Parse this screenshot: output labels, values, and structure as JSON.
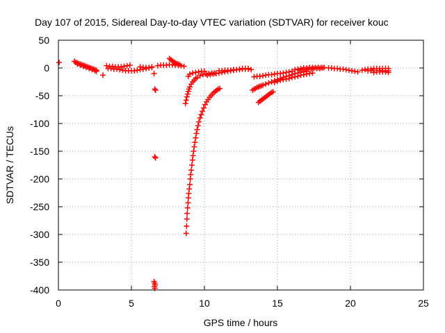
{
  "chart_data": {
    "type": "scatter",
    "title": "Day 107 of 2015, Sidereal Day-to-day VTEC variation (SDTVAR) for receiver kouc",
    "xlabel": "GPS time / hours",
    "ylabel": "SDTVAR / TECUs",
    "xlim": [
      0,
      25
    ],
    "ylim": [
      -400,
      50
    ],
    "xticks": [
      {
        "value": 0,
        "label": "0"
      },
      {
        "value": 5,
        "label": "5"
      },
      {
        "value": 10,
        "label": "10"
      },
      {
        "value": 15,
        "label": "15"
      },
      {
        "value": 20,
        "label": "20"
      },
      {
        "value": 25,
        "label": "25"
      }
    ],
    "yticks": [
      {
        "value": 50,
        "label": "50"
      },
      {
        "value": 0,
        "label": "0"
      },
      {
        "value": -50,
        "label": "-50"
      },
      {
        "value": -100,
        "label": "-100"
      },
      {
        "value": -150,
        "label": "-150"
      },
      {
        "value": -200,
        "label": "-200"
      },
      {
        "value": -250,
        "label": "-250"
      },
      {
        "value": -300,
        "label": "-300"
      },
      {
        "value": -350,
        "label": "-350"
      },
      {
        "value": -400,
        "label": "-400"
      }
    ],
    "grid": true,
    "marker_color": "#ff0000",
    "marker": "plus",
    "series": [
      {
        "points": [
          [
            0.05,
            10
          ],
          [
            1.1,
            12
          ],
          [
            1.2,
            10
          ],
          [
            1.3,
            9
          ],
          [
            1.4,
            8
          ],
          [
            1.5,
            7
          ],
          [
            1.6,
            6
          ],
          [
            1.7,
            5
          ],
          [
            1.8,
            4
          ],
          [
            1.9,
            3
          ],
          [
            2.0,
            2
          ],
          [
            2.1,
            1
          ],
          [
            2.2,
            0
          ],
          [
            2.3,
            -1
          ],
          [
            2.4,
            -2
          ],
          [
            2.5,
            -3
          ],
          [
            2.6,
            -4
          ],
          [
            1.3,
            7
          ],
          [
            1.5,
            5
          ],
          [
            1.7,
            3
          ],
          [
            1.9,
            1
          ],
          [
            2.1,
            -1
          ],
          [
            2.3,
            -3
          ],
          [
            2.5,
            -5
          ],
          [
            2.6,
            -6
          ],
          [
            3.05,
            -13
          ],
          [
            3.3,
            4
          ],
          [
            3.5,
            3
          ],
          [
            3.7,
            3
          ],
          [
            3.9,
            2
          ],
          [
            4.1,
            2
          ],
          [
            4.3,
            2
          ],
          [
            4.5,
            3
          ],
          [
            4.7,
            4
          ],
          [
            4.9,
            5
          ],
          [
            3.4,
            -1
          ],
          [
            3.6,
            -1
          ],
          [
            3.8,
            -2
          ],
          [
            4.0,
            -2
          ],
          [
            4.2,
            -3
          ],
          [
            4.4,
            -4
          ],
          [
            4.6,
            -5
          ],
          [
            4.8,
            -5
          ],
          [
            5.0,
            -5
          ],
          [
            5.2,
            -5
          ],
          [
            5.4,
            -4
          ],
          [
            5.6,
            -3
          ],
          [
            5.8,
            -2
          ],
          [
            6.0,
            -1
          ],
          [
            6.2,
            0
          ],
          [
            6.4,
            1
          ],
          [
            5.6,
            2
          ],
          [
            5.8,
            1
          ],
          [
            6.0,
            1
          ],
          [
            6.2,
            1
          ],
          [
            6.4,
            2
          ],
          [
            6.55,
            -10
          ],
          [
            6.6,
            -38
          ],
          [
            6.65,
            -40
          ],
          [
            6.6,
            -160
          ],
          [
            6.65,
            -162
          ],
          [
            6.55,
            -385
          ],
          [
            6.6,
            -388
          ],
          [
            6.62,
            -391
          ],
          [
            6.58,
            -394
          ],
          [
            6.6,
            -397
          ],
          [
            6.8,
            4
          ],
          [
            7.0,
            5
          ],
          [
            7.2,
            5
          ],
          [
            7.4,
            5
          ],
          [
            7.6,
            6
          ],
          [
            7.8,
            6
          ],
          [
            8.0,
            5
          ],
          [
            8.2,
            5
          ],
          [
            8.4,
            4
          ],
          [
            8.6,
            3
          ],
          [
            7.6,
            17
          ],
          [
            7.7,
            15
          ],
          [
            7.8,
            13
          ],
          [
            7.9,
            11
          ],
          [
            8.0,
            9
          ],
          [
            8.1,
            8
          ],
          [
            8.2,
            7
          ],
          [
            8.3,
            6
          ],
          [
            8.7,
            -64
          ],
          [
            8.75,
            -58
          ],
          [
            8.8,
            -52
          ],
          [
            8.85,
            -47
          ],
          [
            8.9,
            -42
          ],
          [
            8.95,
            -38
          ],
          [
            9.0,
            -34
          ],
          [
            9.1,
            -29
          ],
          [
            9.2,
            -25
          ],
          [
            9.3,
            -22
          ],
          [
            9.4,
            -19
          ],
          [
            9.5,
            -17
          ],
          [
            9.7,
            -14
          ],
          [
            9.9,
            -12
          ],
          [
            10.1,
            -11
          ],
          [
            10.3,
            -10
          ],
          [
            10.5,
            -9
          ],
          [
            10.7,
            -9
          ],
          [
            8.9,
            -15
          ],
          [
            9.0,
            -11
          ],
          [
            9.2,
            -9
          ],
          [
            9.4,
            -8
          ],
          [
            9.6,
            -7
          ],
          [
            9.8,
            -6
          ],
          [
            10.0,
            -6
          ],
          [
            8.75,
            -298
          ],
          [
            8.78,
            -285
          ],
          [
            8.8,
            -272
          ],
          [
            8.82,
            -262
          ],
          [
            8.85,
            -252
          ],
          [
            8.88,
            -243
          ],
          [
            8.9,
            -234
          ],
          [
            8.93,
            -226
          ],
          [
            8.96,
            -218
          ],
          [
            9.0,
            -210
          ],
          [
            9.03,
            -200
          ],
          [
            9.06,
            -192
          ],
          [
            9.1,
            -184
          ],
          [
            9.14,
            -175
          ],
          [
            9.18,
            -166
          ],
          [
            9.22,
            -158
          ],
          [
            9.26,
            -150
          ],
          [
            9.3,
            -142
          ],
          [
            9.35,
            -134
          ],
          [
            9.4,
            -126
          ],
          [
            9.45,
            -118
          ],
          [
            9.5,
            -111
          ],
          [
            9.56,
            -104
          ],
          [
            9.62,
            -97
          ],
          [
            9.7,
            -90
          ],
          [
            9.78,
            -84
          ],
          [
            9.86,
            -78
          ],
          [
            9.95,
            -72
          ],
          [
            10.05,
            -66
          ],
          [
            10.15,
            -61
          ],
          [
            10.25,
            -57
          ],
          [
            10.35,
            -53
          ],
          [
            10.45,
            -50
          ],
          [
            10.55,
            -47
          ],
          [
            10.65,
            -44
          ],
          [
            10.75,
            -42
          ],
          [
            10.85,
            -40
          ],
          [
            10.95,
            -38
          ],
          [
            11.05,
            -37
          ],
          [
            10.2,
            -13
          ],
          [
            10.4,
            -12
          ],
          [
            10.6,
            -11
          ],
          [
            10.8,
            -10
          ],
          [
            11.0,
            -9
          ],
          [
            11.2,
            -8
          ],
          [
            11.4,
            -7
          ],
          [
            11.6,
            -6
          ],
          [
            11.8,
            -5
          ],
          [
            12.0,
            -4
          ],
          [
            12.2,
            -3
          ],
          [
            12.4,
            -3
          ],
          [
            12.6,
            -2
          ],
          [
            12.8,
            -2
          ],
          [
            13.0,
            -2
          ],
          [
            13.2,
            -3
          ],
          [
            11.0,
            -5
          ],
          [
            11.2,
            -5
          ],
          [
            11.4,
            -4
          ],
          [
            11.6,
            -4
          ],
          [
            11.8,
            -4
          ],
          [
            12.0,
            -3
          ],
          [
            12.2,
            -3
          ],
          [
            12.4,
            -2
          ],
          [
            12.6,
            -1
          ],
          [
            12.8,
            -1
          ],
          [
            13.0,
            -1
          ],
          [
            13.4,
            -16
          ],
          [
            13.6,
            -15
          ],
          [
            13.8,
            -15
          ],
          [
            14.0,
            -14
          ],
          [
            14.2,
            -13
          ],
          [
            14.4,
            -12
          ],
          [
            14.6,
            -12
          ],
          [
            14.8,
            -11
          ],
          [
            15.0,
            -10
          ],
          [
            15.2,
            -10
          ],
          [
            15.4,
            -9
          ],
          [
            15.6,
            -8
          ],
          [
            15.8,
            -7
          ],
          [
            16.0,
            -6
          ],
          [
            13.3,
            -40
          ],
          [
            13.4,
            -38
          ],
          [
            13.5,
            -37
          ],
          [
            13.6,
            -35
          ],
          [
            13.7,
            -34
          ],
          [
            13.8,
            -33
          ],
          [
            13.9,
            -32
          ],
          [
            14.0,
            -31
          ],
          [
            14.2,
            -29
          ],
          [
            14.4,
            -27
          ],
          [
            14.6,
            -25
          ],
          [
            14.8,
            -23
          ],
          [
            15.0,
            -21
          ],
          [
            15.2,
            -19
          ],
          [
            15.4,
            -17
          ],
          [
            15.6,
            -15
          ],
          [
            15.8,
            -14
          ],
          [
            16.0,
            -12
          ],
          [
            16.2,
            -10
          ],
          [
            16.4,
            -9
          ],
          [
            16.6,
            -8
          ],
          [
            16.8,
            -7
          ],
          [
            17.0,
            -6
          ],
          [
            13.7,
            -62
          ],
          [
            13.8,
            -60
          ],
          [
            13.9,
            -58
          ],
          [
            14.0,
            -56
          ],
          [
            14.1,
            -54
          ],
          [
            14.2,
            -52
          ],
          [
            14.3,
            -50
          ],
          [
            14.4,
            -48
          ],
          [
            14.5,
            -46
          ],
          [
            14.6,
            -44
          ],
          [
            14.7,
            -43
          ],
          [
            14.8,
            -26
          ],
          [
            15.0,
            -24
          ],
          [
            15.2,
            -22
          ],
          [
            15.4,
            -21
          ],
          [
            15.6,
            -20
          ],
          [
            15.8,
            -19
          ],
          [
            16.0,
            -17
          ],
          [
            16.2,
            -16
          ],
          [
            16.4,
            -15
          ],
          [
            16.6,
            -13
          ],
          [
            16.8,
            -12
          ],
          [
            17.0,
            -11
          ],
          [
            17.2,
            -10
          ],
          [
            17.4,
            -9
          ],
          [
            16.2,
            -3
          ],
          [
            16.4,
            -2
          ],
          [
            16.6,
            -1
          ],
          [
            16.8,
            0
          ],
          [
            17.0,
            0
          ],
          [
            17.2,
            1
          ],
          [
            17.4,
            1
          ],
          [
            17.6,
            1
          ],
          [
            17.8,
            1
          ],
          [
            18.0,
            1
          ],
          [
            18.2,
            1
          ],
          [
            16.5,
            -4
          ],
          [
            16.7,
            -3
          ],
          [
            16.9,
            -3
          ],
          [
            17.1,
            -2
          ],
          [
            17.3,
            -2
          ],
          [
            17.5,
            -1
          ],
          [
            17.7,
            -1
          ],
          [
            17.9,
            -1
          ],
          [
            18.1,
            0
          ],
          [
            18.5,
            0
          ],
          [
            18.7,
            0
          ],
          [
            18.9,
            -1
          ],
          [
            19.1,
            -1
          ],
          [
            19.3,
            -2
          ],
          [
            19.5,
            -2
          ],
          [
            19.7,
            -3
          ],
          [
            19.9,
            -4
          ],
          [
            20.1,
            -5
          ],
          [
            20.3,
            -6
          ],
          [
            20.5,
            -7
          ],
          [
            20.8,
            -4
          ],
          [
            21.0,
            -3
          ],
          [
            21.2,
            -2
          ],
          [
            21.4,
            -2
          ],
          [
            21.6,
            -1
          ],
          [
            21.8,
            -1
          ],
          [
            22.0,
            -1
          ],
          [
            22.2,
            -1
          ],
          [
            22.4,
            -1
          ],
          [
            22.6,
            -1
          ],
          [
            21.2,
            -5
          ],
          [
            21.4,
            -5
          ],
          [
            21.6,
            -4
          ],
          [
            21.8,
            -4
          ],
          [
            22.0,
            -4
          ],
          [
            22.2,
            -5
          ],
          [
            22.4,
            -5
          ],
          [
            22.6,
            -5
          ],
          [
            21.6,
            -8
          ],
          [
            21.8,
            -7
          ],
          [
            22.0,
            -7
          ],
          [
            22.2,
            -7
          ],
          [
            22.4,
            -7
          ],
          [
            22.6,
            -8
          ]
        ]
      }
    ]
  }
}
